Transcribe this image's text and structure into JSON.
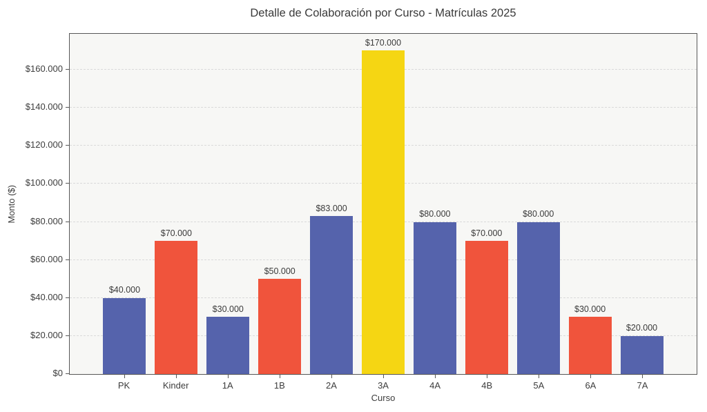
{
  "chart": {
    "title": "Detalle de Colaboración por Curso - Matrículas 2025",
    "xlabel": "Curso",
    "ylabel": "Monto ($)"
  },
  "colors": {
    "bar_blue": "#5563ac",
    "bar_red": "#f0543c",
    "bar_yellow": "#f5d613",
    "plot_background": "#f7f7f5",
    "figure_background": "#ffffff",
    "grid": "#d9d9d9",
    "spine": "#565656",
    "text": "#3c3c3c"
  },
  "chart_data": {
    "type": "bar",
    "title": "Detalle de Colaboración por Curso - Matrículas 2025",
    "xlabel": "Curso",
    "ylabel": "Monto ($)",
    "categories": [
      "PK",
      "Kinder",
      "1A",
      "1B",
      "2A",
      "3A",
      "4A",
      "4B",
      "5A",
      "6A",
      "7A"
    ],
    "values": [
      40000,
      70000,
      30000,
      50000,
      83000,
      170000,
      80000,
      70000,
      80000,
      30000,
      20000
    ],
    "bar_labels": [
      "$40.000",
      "$70.000",
      "$30.000",
      "$50.000",
      "$83.000",
      "$170.000",
      "$80.000",
      "$70.000",
      "$80.000",
      "$30.000",
      "$20.000"
    ],
    "bar_colors": [
      "#5563ac",
      "#f0543c",
      "#5563ac",
      "#f0543c",
      "#5563ac",
      "#f5d613",
      "#5563ac",
      "#f0543c",
      "#5563ac",
      "#f0543c",
      "#5563ac"
    ],
    "ylim": [
      0,
      178500
    ],
    "yticks": [
      {
        "value": 0,
        "label": "$0"
      },
      {
        "value": 20000,
        "label": "$20.000"
      },
      {
        "value": 40000,
        "label": "$40.000"
      },
      {
        "value": 60000,
        "label": "$60.000"
      },
      {
        "value": 80000,
        "label": "$80.000"
      },
      {
        "value": 100000,
        "label": "$100.000"
      },
      {
        "value": 120000,
        "label": "$120.000"
      },
      {
        "value": 140000,
        "label": "$140.000"
      },
      {
        "value": 160000,
        "label": "$160.000"
      }
    ],
    "grid": {
      "axis": "y",
      "style": "dashed",
      "on": true
    },
    "legend": "none"
  }
}
